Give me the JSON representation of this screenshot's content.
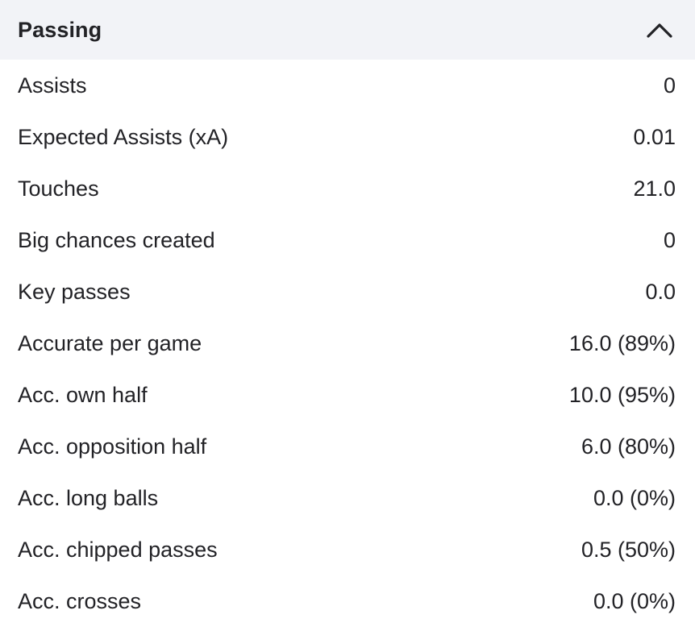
{
  "section": {
    "title": "Passing",
    "toggle_icon": "chevron-up-icon"
  },
  "stats": [
    {
      "label": "Assists",
      "value": "0"
    },
    {
      "label": "Expected Assists (xA)",
      "value": "0.01"
    },
    {
      "label": "Touches",
      "value": "21.0"
    },
    {
      "label": "Big chances created",
      "value": "0"
    },
    {
      "label": "Key passes",
      "value": "0.0"
    },
    {
      "label": "Accurate per game",
      "value": "16.0 (89%)"
    },
    {
      "label": "Acc. own half",
      "value": "10.0 (95%)"
    },
    {
      "label": "Acc. opposition half",
      "value": "6.0 (80%)"
    },
    {
      "label": "Acc. long balls",
      "value": "0.0 (0%)"
    },
    {
      "label": "Acc. chipped passes",
      "value": "0.5 (50%)"
    },
    {
      "label": "Acc. crosses",
      "value": "0.0 (0%)"
    }
  ]
}
